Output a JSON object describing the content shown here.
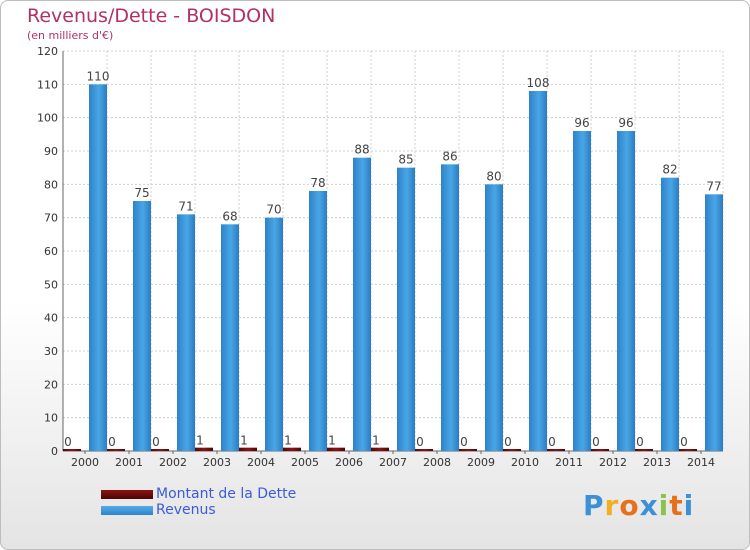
{
  "header": {
    "title": "Revenus/Dette - BOISDON",
    "subtitle": "(en milliers d'€)"
  },
  "colors": {
    "revenus": "#3a97dc",
    "dette": "#6b0c0c",
    "title": "#b0306a",
    "legend_text": "#3d5bd9"
  },
  "logo": {
    "text": "Proxiti",
    "letters": [
      "P",
      "r",
      "o",
      "x",
      "i",
      "t",
      "i"
    ],
    "letter_colors": [
      "#3d8fd6",
      "#f0b020",
      "#e8701c",
      "#3d8fd6",
      "#8bc34a",
      "#e8701c",
      "#3d8fd6"
    ]
  },
  "chart_data": {
    "type": "bar",
    "title": "Revenus/Dette - BOISDON",
    "subtitle": "(en milliers d'€)",
    "xlabel": "",
    "ylabel": "",
    "ylim": [
      0,
      120
    ],
    "yticks": [
      0,
      10,
      20,
      30,
      40,
      50,
      60,
      70,
      80,
      90,
      100,
      110,
      120
    ],
    "grid": true,
    "legend_position": "bottom-left",
    "categories": [
      "2000",
      "2001",
      "2002",
      "2003",
      "2004",
      "2005",
      "2006",
      "2007",
      "2008",
      "2009",
      "2010",
      "2011",
      "2012",
      "2013",
      "2014"
    ],
    "series": [
      {
        "name": "Montant de la Dette",
        "values": [
          0,
          0,
          0,
          1,
          1,
          1,
          1,
          1,
          0,
          0,
          0,
          0,
          0,
          0,
          0
        ]
      },
      {
        "name": "Revenus",
        "values": [
          110,
          75,
          71,
          68,
          70,
          78,
          88,
          85,
          86,
          80,
          108,
          96,
          96,
          82,
          77
        ]
      }
    ]
  }
}
